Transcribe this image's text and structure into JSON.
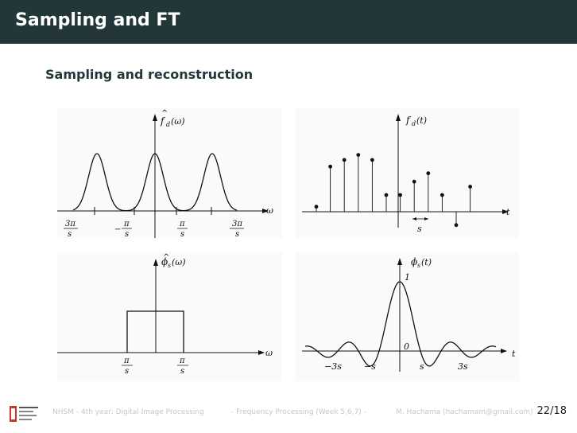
{
  "slide": {
    "title": "Sampling and FT",
    "subtitle": "Sampling and reconstruction"
  },
  "panels": {
    "top_left": {
      "ylabel_hat": "^",
      "ylabel_f": "f",
      "ylabel_sub": "d",
      "ylabel_arg": "(ω)",
      "xlabel": "ω",
      "ticks": [
        {
          "num": "3π",
          "den": "s",
          "sign": ""
        },
        {
          "num": "π",
          "den": "s",
          "sign": "−"
        },
        {
          "num": "π",
          "den": "s",
          "sign": ""
        },
        {
          "num": "3π",
          "den": "s",
          "sign": ""
        }
      ]
    },
    "top_right": {
      "ylabel_f": "f",
      "ylabel_sub": "d",
      "ylabel_arg": "(t)",
      "xlabel": "t",
      "spacing_label": "s",
      "samples": [
        0.15,
        1.35,
        1.55,
        1.7,
        1.55,
        0.5,
        0.5,
        0.9,
        1.15,
        0.5,
        -0.4,
        0.75
      ]
    },
    "bottom_left": {
      "ylabel_hat": "^",
      "ylabel_f": "ϕ",
      "ylabel_sub": "s",
      "ylabel_arg": "(ω)",
      "xlabel": "ω",
      "ticks": [
        {
          "num": "π",
          "den": "s",
          "sign": ""
        },
        {
          "num": "π",
          "den": "s",
          "sign": ""
        }
      ]
    },
    "bottom_right": {
      "ylabel_f": "ϕ",
      "ylabel_sub": "s",
      "ylabel_arg": "(t)",
      "xlabel": "t",
      "peak_label": "1",
      "zero_label": "0",
      "tick_labels": [
        "−3s",
        "−s",
        "s",
        "3s"
      ]
    }
  },
  "footer": {
    "course": "NHSM - 4th year: Digital Image Processing",
    "section": "- Frequency Processing (Week 5,6,7) -",
    "author": "M. Hachama (hachamam@gmail.com)",
    "page": "22/18"
  }
}
